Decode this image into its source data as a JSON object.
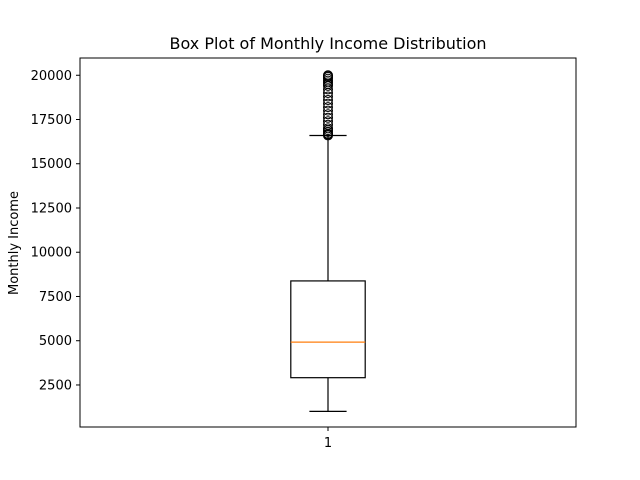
{
  "chart_data": {
    "type": "box",
    "title": "Box Plot of Monthly Income Distribution",
    "xlabel": "",
    "ylabel": "Monthly Income",
    "categories": [
      "1"
    ],
    "ylim": [
      125,
      20975
    ],
    "yticks": [
      2500,
      5000,
      7500,
      10000,
      12500,
      15000,
      17500,
      20000
    ],
    "ytick_labels": [
      "2500",
      "5000",
      "7500",
      "10000",
      "12500",
      "15000",
      "17500",
      "20000"
    ],
    "boxes": [
      {
        "category": "1",
        "whisker_low": 1009,
        "q1": 2911,
        "median": 4919,
        "q3": 8379,
        "whisker_high": 16595,
        "outliers": [
          16600,
          16650,
          16700,
          16800,
          16900,
          17000,
          17200,
          17400,
          17600,
          17800,
          18000,
          18200,
          18400,
          18600,
          18800,
          19000,
          19200,
          19400,
          19500,
          19600,
          19700,
          19800,
          19900,
          19950,
          19999
        ]
      }
    ],
    "colors": {
      "box": "#000000",
      "median": "#ff7f0e",
      "outlier_edge": "#000000"
    },
    "grid": false,
    "legend": "none"
  }
}
